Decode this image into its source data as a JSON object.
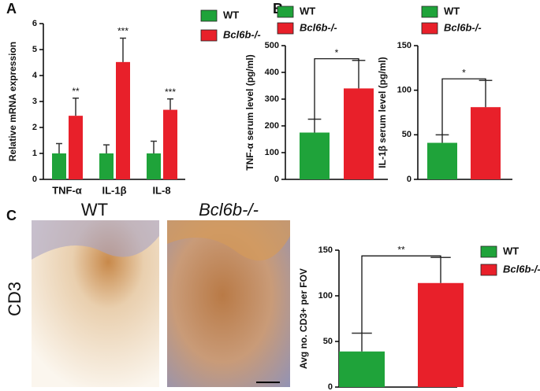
{
  "panels": {
    "labels": [
      "A",
      "B",
      "C"
    ],
    "image_labels": [
      "WT",
      "Bcl6b-/-"
    ],
    "row_label": "CD3"
  },
  "chart_data": [
    {
      "type": "bar",
      "ylabel": "Relative mRNA expression",
      "categories": [
        "TNF-α",
        "IL-1β",
        "IL-8"
      ],
      "series": [
        {
          "name": "WT",
          "color": "#1fa33a",
          "values": [
            1,
            1,
            1
          ],
          "errors": [
            0.38,
            0.33,
            0.47
          ]
        },
        {
          "name": "Bcl6b-/-",
          "color": "#e8202a",
          "values": [
            2.45,
            4.52,
            2.68
          ],
          "errors": [
            0.68,
            0.92,
            0.42
          ]
        }
      ],
      "annotations": [
        "**",
        "***",
        "***"
      ],
      "ylim": [
        0,
        6
      ],
      "yticks": [
        0,
        1,
        2,
        3,
        4,
        5,
        6
      ]
    },
    {
      "type": "bar",
      "ylabel": "TNF-α serum level (pg/ml)",
      "categories": [
        null
      ],
      "series": [
        {
          "name": "WT",
          "color": "#1fa33a",
          "values": [
            175
          ],
          "errors": [
            50
          ]
        },
        {
          "name": "Bcl6b-/-",
          "color": "#e8202a",
          "values": [
            340
          ],
          "errors": [
            105
          ]
        }
      ],
      "significance": "*",
      "ylim": [
        0,
        500
      ],
      "yticks": [
        0,
        100,
        200,
        300,
        400,
        500
      ]
    },
    {
      "type": "bar",
      "ylabel": "IL-1β serum level (pg/ml)",
      "categories": [
        null
      ],
      "series": [
        {
          "name": "WT",
          "color": "#1fa33a",
          "values": [
            41
          ],
          "errors": [
            9
          ]
        },
        {
          "name": "Bcl6b-/-",
          "color": "#e8202a",
          "values": [
            81
          ],
          "errors": [
            30
          ]
        }
      ],
      "significance": "*",
      "ylim": [
        0,
        150
      ],
      "yticks": [
        0,
        50,
        100,
        150
      ]
    },
    {
      "type": "bar",
      "ylabel": "Avg no. CD3+ per FOV",
      "categories": [
        null
      ],
      "series": [
        {
          "name": "WT",
          "color": "#1fa33a",
          "values": [
            39
          ],
          "errors": [
            20
          ]
        },
        {
          "name": "Bcl6b-/-",
          "color": "#e8202a",
          "values": [
            114
          ],
          "errors": [
            28
          ]
        }
      ],
      "significance": "**",
      "ylim": [
        0,
        150
      ],
      "yticks": [
        0,
        50,
        100,
        150
      ]
    }
  ]
}
